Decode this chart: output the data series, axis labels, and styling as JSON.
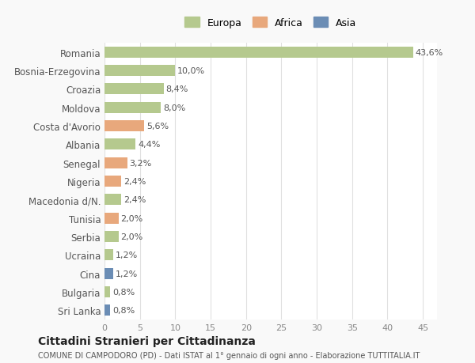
{
  "countries": [
    "Romania",
    "Bosnia-Erzegovina",
    "Croazia",
    "Moldova",
    "Costa d'Avorio",
    "Albania",
    "Senegal",
    "Nigeria",
    "Macedonia d/N.",
    "Tunisia",
    "Serbia",
    "Ucraina",
    "Cina",
    "Bulgaria",
    "Sri Lanka"
  ],
  "values": [
    43.6,
    10.0,
    8.4,
    8.0,
    5.6,
    4.4,
    3.2,
    2.4,
    2.4,
    2.0,
    2.0,
    1.2,
    1.2,
    0.8,
    0.8
  ],
  "labels": [
    "43,6%",
    "10,0%",
    "8,4%",
    "8,0%",
    "5,6%",
    "4,4%",
    "3,2%",
    "2,4%",
    "2,4%",
    "2,0%",
    "2,0%",
    "1,2%",
    "1,2%",
    "0,8%",
    "0,8%"
  ],
  "continents": [
    "Europa",
    "Europa",
    "Europa",
    "Europa",
    "Africa",
    "Europa",
    "Africa",
    "Africa",
    "Europa",
    "Africa",
    "Europa",
    "Europa",
    "Asia",
    "Europa",
    "Asia"
  ],
  "colors": {
    "Europa": "#b5c98e",
    "Africa": "#e8a87c",
    "Asia": "#6b8db5"
  },
  "legend_labels": [
    "Europa",
    "Africa",
    "Asia"
  ],
  "legend_colors": [
    "#b5c98e",
    "#e8a87c",
    "#6b8db5"
  ],
  "title": "Cittadini Stranieri per Cittadinanza",
  "subtitle": "COMUNE DI CAMPODORO (PD) - Dati ISTAT al 1° gennaio di ogni anno - Elaborazione TUTTITALIA.IT",
  "xlabel_ticks": [
    0,
    5,
    10,
    15,
    20,
    25,
    30,
    35,
    40,
    45
  ],
  "background_color": "#f9f9f9",
  "plot_bg_color": "#ffffff",
  "grid_color": "#e0e0e0"
}
